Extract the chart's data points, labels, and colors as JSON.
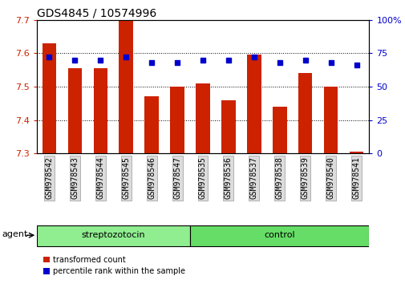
{
  "title": "GDS4845 / 10574996",
  "samples": [
    "GSM978542",
    "GSM978543",
    "GSM978544",
    "GSM978545",
    "GSM978546",
    "GSM978547",
    "GSM978535",
    "GSM978536",
    "GSM978537",
    "GSM978538",
    "GSM978539",
    "GSM978540",
    "GSM978541"
  ],
  "groups": [
    "streptozotocin",
    "streptozotocin",
    "streptozotocin",
    "streptozotocin",
    "streptozotocin",
    "streptozotocin",
    "control",
    "control",
    "control",
    "control",
    "control",
    "control",
    "control"
  ],
  "bar_values": [
    7.63,
    7.555,
    7.555,
    7.7,
    7.47,
    7.5,
    7.51,
    7.46,
    7.595,
    7.44,
    7.54,
    7.5,
    7.305
  ],
  "percentile_values": [
    72,
    70,
    70,
    72,
    68,
    68,
    70,
    70,
    72,
    68,
    70,
    68,
    66
  ],
  "ymin": 7.3,
  "ymax": 7.7,
  "y2min": 0,
  "y2max": 100,
  "yticks": [
    7.3,
    7.4,
    7.5,
    7.6,
    7.7
  ],
  "y2ticks": [
    0,
    25,
    50,
    75,
    100
  ],
  "bar_color": "#CC2200",
  "marker_color": "#0000CC",
  "strep_color": "#90EE90",
  "ctrl_color": "#66DD66",
  "agent_label": "agent",
  "bar_color_legend": "#CC2200",
  "marker_color_legend": "#0000CC",
  "ylabel_color": "#CC2200",
  "y2label_color": "#0000CC",
  "title_fontsize": 10,
  "tick_fontsize": 8,
  "label_fontsize": 7,
  "group_fontsize": 8,
  "legend_fontsize": 7
}
